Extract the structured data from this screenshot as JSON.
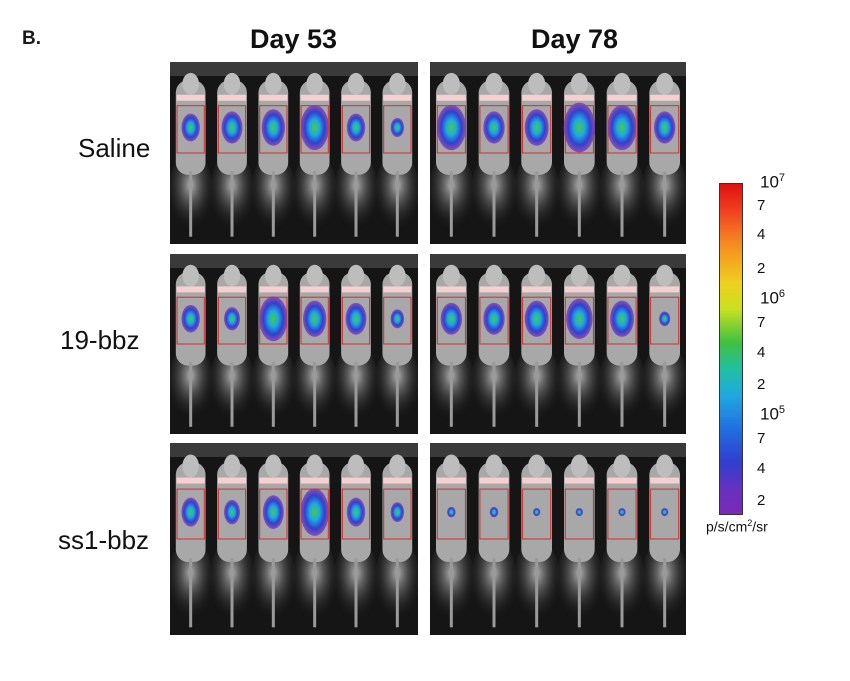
{
  "panel_label": "B.",
  "columns": [
    "Day 53",
    "Day 78"
  ],
  "rows": [
    "Saline",
    "19-bbz",
    "ss1-bbz"
  ],
  "scale": {
    "unit_base": "p/s/cm",
    "unit_exp": "2",
    "unit_tail": "/sr",
    "decade_base": "10",
    "ticks": [
      {
        "label": "10",
        "exp": "7"
      },
      {
        "label": "7"
      },
      {
        "label": "4"
      },
      {
        "label": "2"
      },
      {
        "label": "10",
        "exp": "6"
      },
      {
        "label": "7"
      },
      {
        "label": "4"
      },
      {
        "label": "2"
      },
      {
        "label": "10",
        "exp": "5"
      },
      {
        "label": "7"
      },
      {
        "label": "4"
      },
      {
        "label": "2"
      }
    ]
  },
  "colors": {
    "scale_top": "#e01010",
    "scale_mid": "#40c040",
    "scale_bottom": "#7a2ab8",
    "roi_box": "#d03030"
  }
}
